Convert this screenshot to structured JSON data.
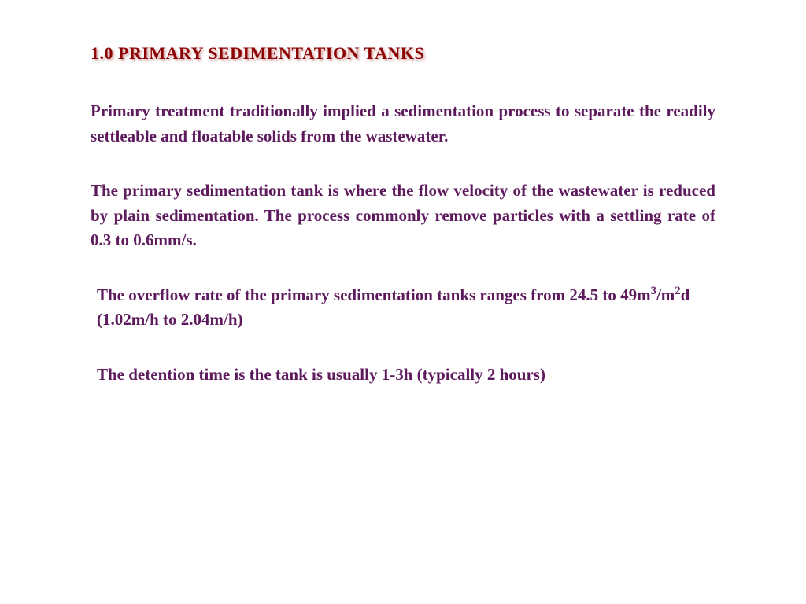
{
  "colors": {
    "heading": "#8b0000",
    "heading_shadow": "rgba(139, 0, 0, 0.4)",
    "body_text": "#5d1a5d",
    "background": "#ffffff"
  },
  "typography": {
    "heading_fontsize": 22,
    "body_fontsize": 21,
    "font_family": "Georgia, Times New Roman, serif",
    "font_weight": "bold",
    "line_height": 1.5
  },
  "heading": "1.0  PRIMARY SEDIMENTATION TANKS",
  "paragraphs": {
    "p1": "Primary treatment traditionally implied a sedimentation process to separate the readily settleable and floatable solids from the wastewater.",
    "p2": "The primary sedimentation tank is where the flow velocity of the wastewater is reduced by plain sedimentation. The process commonly remove particles with a settling rate of 0.3 to 0.6mm/s.",
    "p3_part1": "The overflow rate of the primary sedimentation tanks ranges from 24.5 to 49m",
    "p3_sup1": "3",
    "p3_part2": "/m",
    "p3_sup2": "2",
    "p3_part3": "d (1.02m/h to 2.04m/h)",
    "p4": "The detention time is the tank is usually 1-3h (typically 2 hours)"
  }
}
